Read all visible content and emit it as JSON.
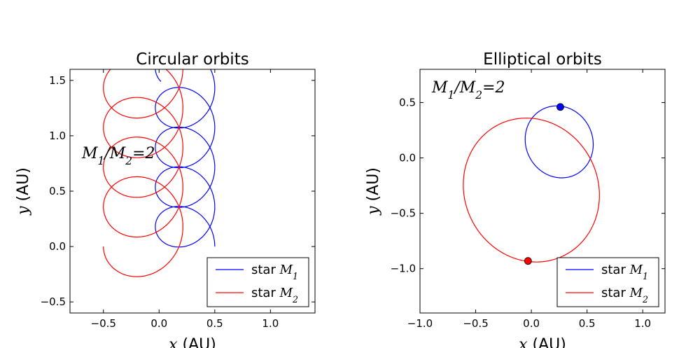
{
  "chart_data": [
    {
      "type": "line",
      "title": "Circular orbits",
      "xlabel": {
        "math": "x",
        "unit": "(AU)"
      },
      "ylabel": {
        "math": "y",
        "unit": "(AU)"
      },
      "xlim": [
        -0.8,
        1.4
      ],
      "ylim": [
        -0.6,
        1.6
      ],
      "xticks": [
        -0.5,
        0.0,
        0.5,
        1.0
      ],
      "xtick_labels": [
        "−0.5",
        "0.0",
        "0.5",
        "1.0"
      ],
      "yticks": [
        -0.5,
        0.0,
        0.5,
        1.0,
        1.5
      ],
      "ytick_labels": [
        "−0.5",
        "0.0",
        "0.5",
        "1.0",
        "1.5"
      ],
      "annotation": "M₁/M₂ = 2",
      "legend_position": "lower-right",
      "series": [
        {
          "name": "star M₁",
          "legend_prefix": "star",
          "legend_math": "M₁",
          "color": "#0000ff",
          "orbit": {
            "kind": "trochoid",
            "start": [
              0.5,
              0.0
            ],
            "center_x": 0.233,
            "radius": 0.267,
            "drift_per_rev": 0.358,
            "revolutions": 4.6
          }
        },
        {
          "name": "star M₂",
          "legend_prefix": "star",
          "legend_math": "M₂",
          "color": "#ff0000",
          "orbit": {
            "kind": "trochoid",
            "start": [
              -0.5,
              0.0
            ],
            "center_x": -0.143,
            "radius": 0.357,
            "drift_per_rev": 0.358,
            "revolutions": 4.6
          }
        }
      ]
    },
    {
      "type": "line",
      "title": "Elliptical orbits",
      "xlabel": {
        "math": "x",
        "unit": "(AU)"
      },
      "ylabel": {
        "math": "y",
        "unit": "(AU)"
      },
      "xlim": [
        -1.0,
        1.2
      ],
      "ylim": [
        -1.4,
        0.8
      ],
      "xticks": [
        -1.0,
        -0.5,
        0.0,
        0.5,
        1.0
      ],
      "xtick_labels": [
        "−1.0",
        "−0.5",
        "0.0",
        "0.5",
        "1.0"
      ],
      "yticks": [
        -1.0,
        -0.5,
        0.0,
        0.5
      ],
      "ytick_labels": [
        "−1.0",
        "−0.5",
        "0.0",
        "0.5"
      ],
      "annotation": "M₁/M₂ = 2",
      "legend_position": "lower-right",
      "series": [
        {
          "name": "star M₁",
          "legend_prefix": "star",
          "legend_math": "M₁",
          "color": "#0000ff",
          "orbit": {
            "kind": "ellipse",
            "cx": 0.25,
            "cy": 0.145,
            "rx": 0.3,
            "ry": 0.33,
            "rotation_deg": 25
          },
          "marker": [
            0.26,
            0.46
          ]
        },
        {
          "name": "star M₂",
          "legend_prefix": "star",
          "legend_math": "M₂",
          "color": "#ff0000",
          "orbit": {
            "kind": "ellipse",
            "cx": 0.0,
            "cy": -0.29,
            "rx": 0.6,
            "ry": 0.66,
            "rotation_deg": 25
          },
          "marker": [
            -0.03,
            -0.93
          ]
        }
      ]
    }
  ]
}
